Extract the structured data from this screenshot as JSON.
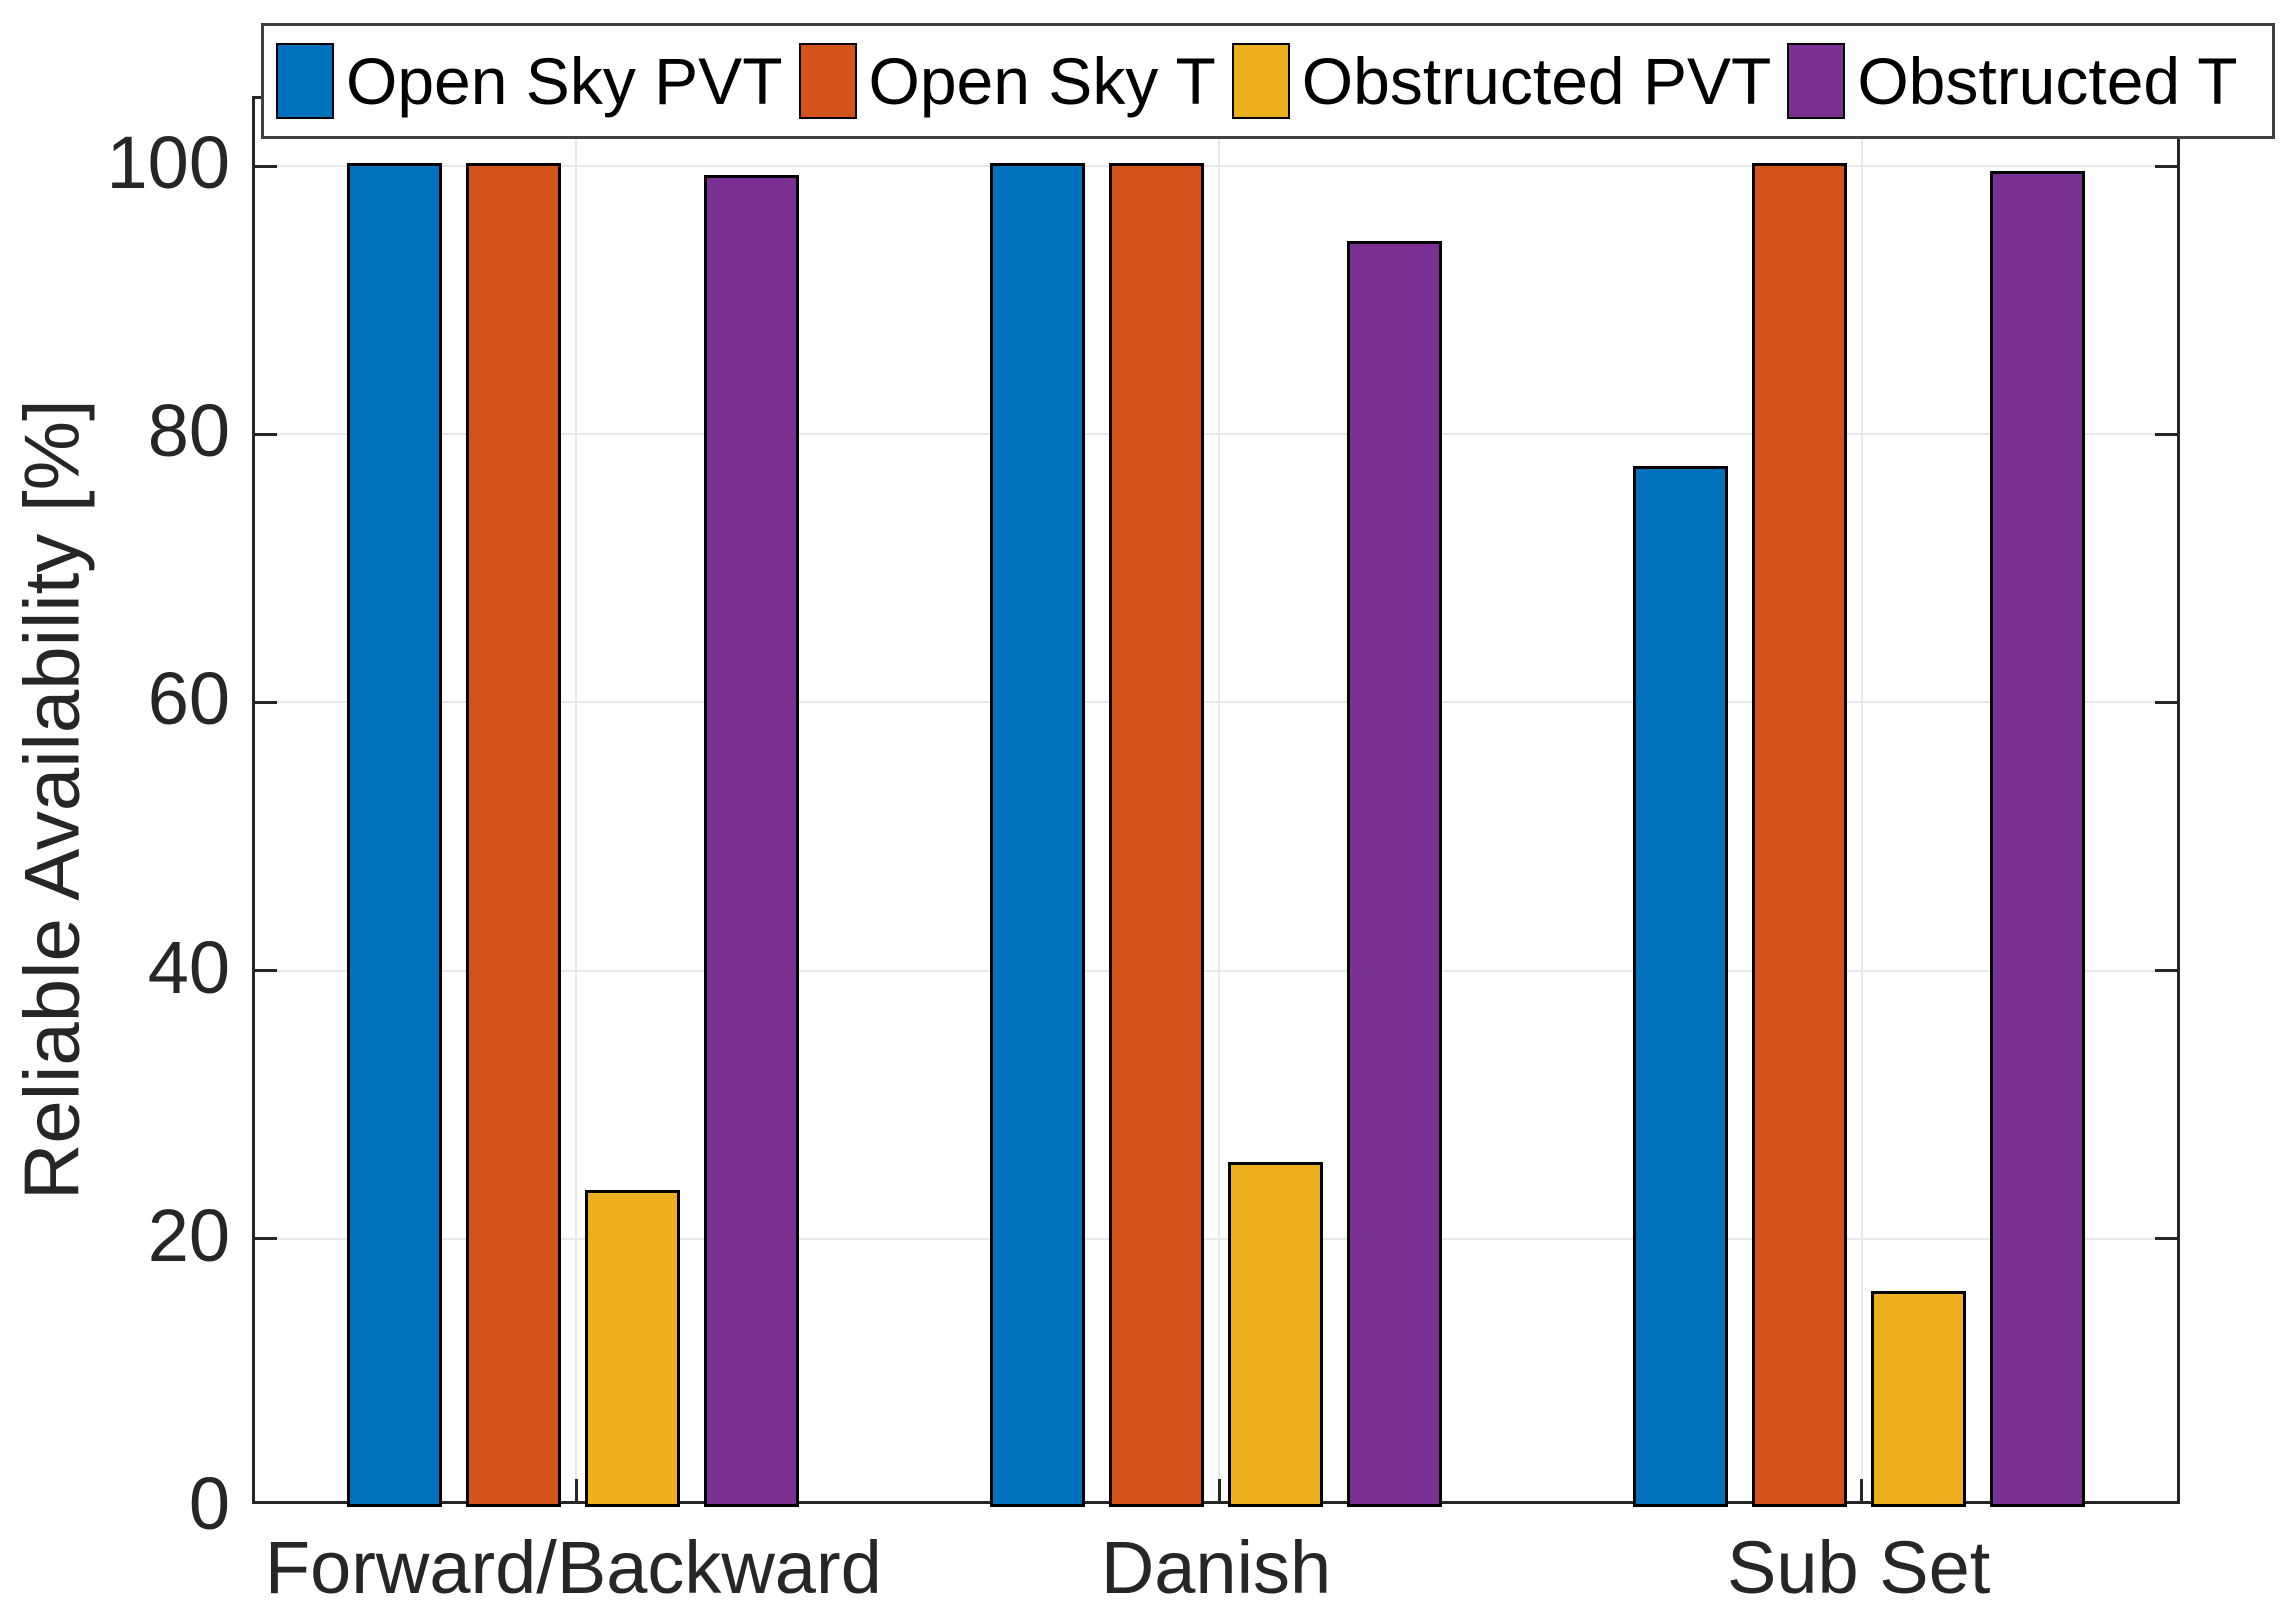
{
  "chart_data": {
    "type": "bar",
    "title": "",
    "xlabel": "",
    "ylabel": "Reliable Availability [%]",
    "categories": [
      "Forward/Backward",
      "Danish",
      "Sub Set"
    ],
    "series": [
      {
        "name": "Open Sky PVT",
        "color": "#0072BD",
        "values": [
          100,
          100,
          77.4
        ]
      },
      {
        "name": "Open Sky T",
        "color": "#D5521A",
        "values": [
          100,
          100,
          100
        ]
      },
      {
        "name": "Obstructed PVT",
        "color": "#ECB01F",
        "values": [
          23.4,
          25.5,
          15.9
        ]
      },
      {
        "name": "Obstructed T",
        "color": "#7A3092",
        "values": [
          99.1,
          94.2,
          99.4
        ]
      }
    ],
    "ylim": [
      0,
      105
    ],
    "yticks": [
      0,
      20,
      40,
      60,
      80,
      100
    ],
    "grid": "on",
    "legend_position": "top-inside",
    "colors": {
      "axis": "#262626",
      "grid": "#e8e8e8",
      "bar_edge": "#000000",
      "background": "#ffffff"
    }
  }
}
